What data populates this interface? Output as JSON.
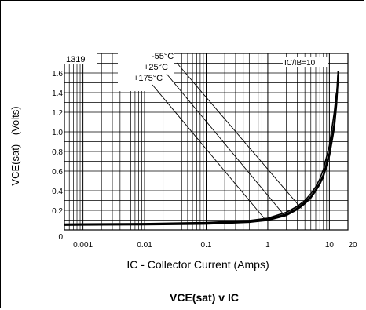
{
  "chart_data": {
    "type": "line",
    "title": "VCE(sat) v IC",
    "xlabel": "IC - Collector Current (Amps)",
    "ylabel": "VCE(sat) - (Volts)",
    "x_scale": "log",
    "xlim": [
      0.0005,
      20
    ],
    "ylim": [
      0,
      1.8
    ],
    "x_tick_labels": [
      "0.001",
      "0.01",
      "0.1",
      "1",
      "10",
      "20"
    ],
    "x_tick_values": [
      0.001,
      0.01,
      0.1,
      1,
      10,
      20
    ],
    "y_tick_labels": [
      "0",
      "0.2",
      "0.4",
      "0.6",
      "0.8",
      "1.0",
      "1.2",
      "1.4",
      "1.6"
    ],
    "y_tick_values": [
      0,
      0.2,
      0.4,
      0.6,
      0.8,
      1.0,
      1.2,
      1.4,
      1.6
    ],
    "grid": true,
    "annotations": {
      "part_number": "1319",
      "condition": "IC/IB=10"
    },
    "series": [
      {
        "name": "-55°C",
        "x": [
          0.0005,
          0.001,
          0.01,
          0.1,
          0.5,
          1,
          2,
          3,
          4,
          5,
          6,
          7,
          8,
          10,
          12,
          13
        ],
        "y": [
          0.06,
          0.062,
          0.065,
          0.075,
          0.095,
          0.12,
          0.18,
          0.24,
          0.3,
          0.37,
          0.44,
          0.52,
          0.62,
          0.86,
          1.2,
          1.4
        ]
      },
      {
        "name": "+25°C",
        "x": [
          0.0005,
          0.001,
          0.01,
          0.1,
          0.5,
          1,
          2,
          3,
          4,
          5,
          6,
          7,
          8,
          10,
          12,
          13,
          14
        ],
        "y": [
          0.055,
          0.057,
          0.06,
          0.068,
          0.088,
          0.11,
          0.16,
          0.22,
          0.28,
          0.34,
          0.41,
          0.48,
          0.56,
          0.78,
          1.08,
          1.3,
          1.62
        ]
      },
      {
        "name": "+175°C",
        "x": [
          0.0005,
          0.001,
          0.01,
          0.1,
          0.5,
          1,
          2,
          3,
          4,
          5,
          6,
          7,
          8,
          10,
          12,
          13,
          14
        ],
        "y": [
          0.05,
          0.052,
          0.055,
          0.062,
          0.08,
          0.1,
          0.15,
          0.21,
          0.27,
          0.33,
          0.4,
          0.47,
          0.55,
          0.76,
          1.05,
          1.28,
          1.62
        ]
      }
    ],
    "legend_leaders": [
      {
        "name": "-55°C",
        "x_end": 3.5,
        "y_end": 0.22
      },
      {
        "name": "+25°C",
        "x_end": 1.8,
        "y_end": 0.16
      },
      {
        "name": "+175°C",
        "x_end": 0.9,
        "y_end": 0.11
      }
    ]
  }
}
